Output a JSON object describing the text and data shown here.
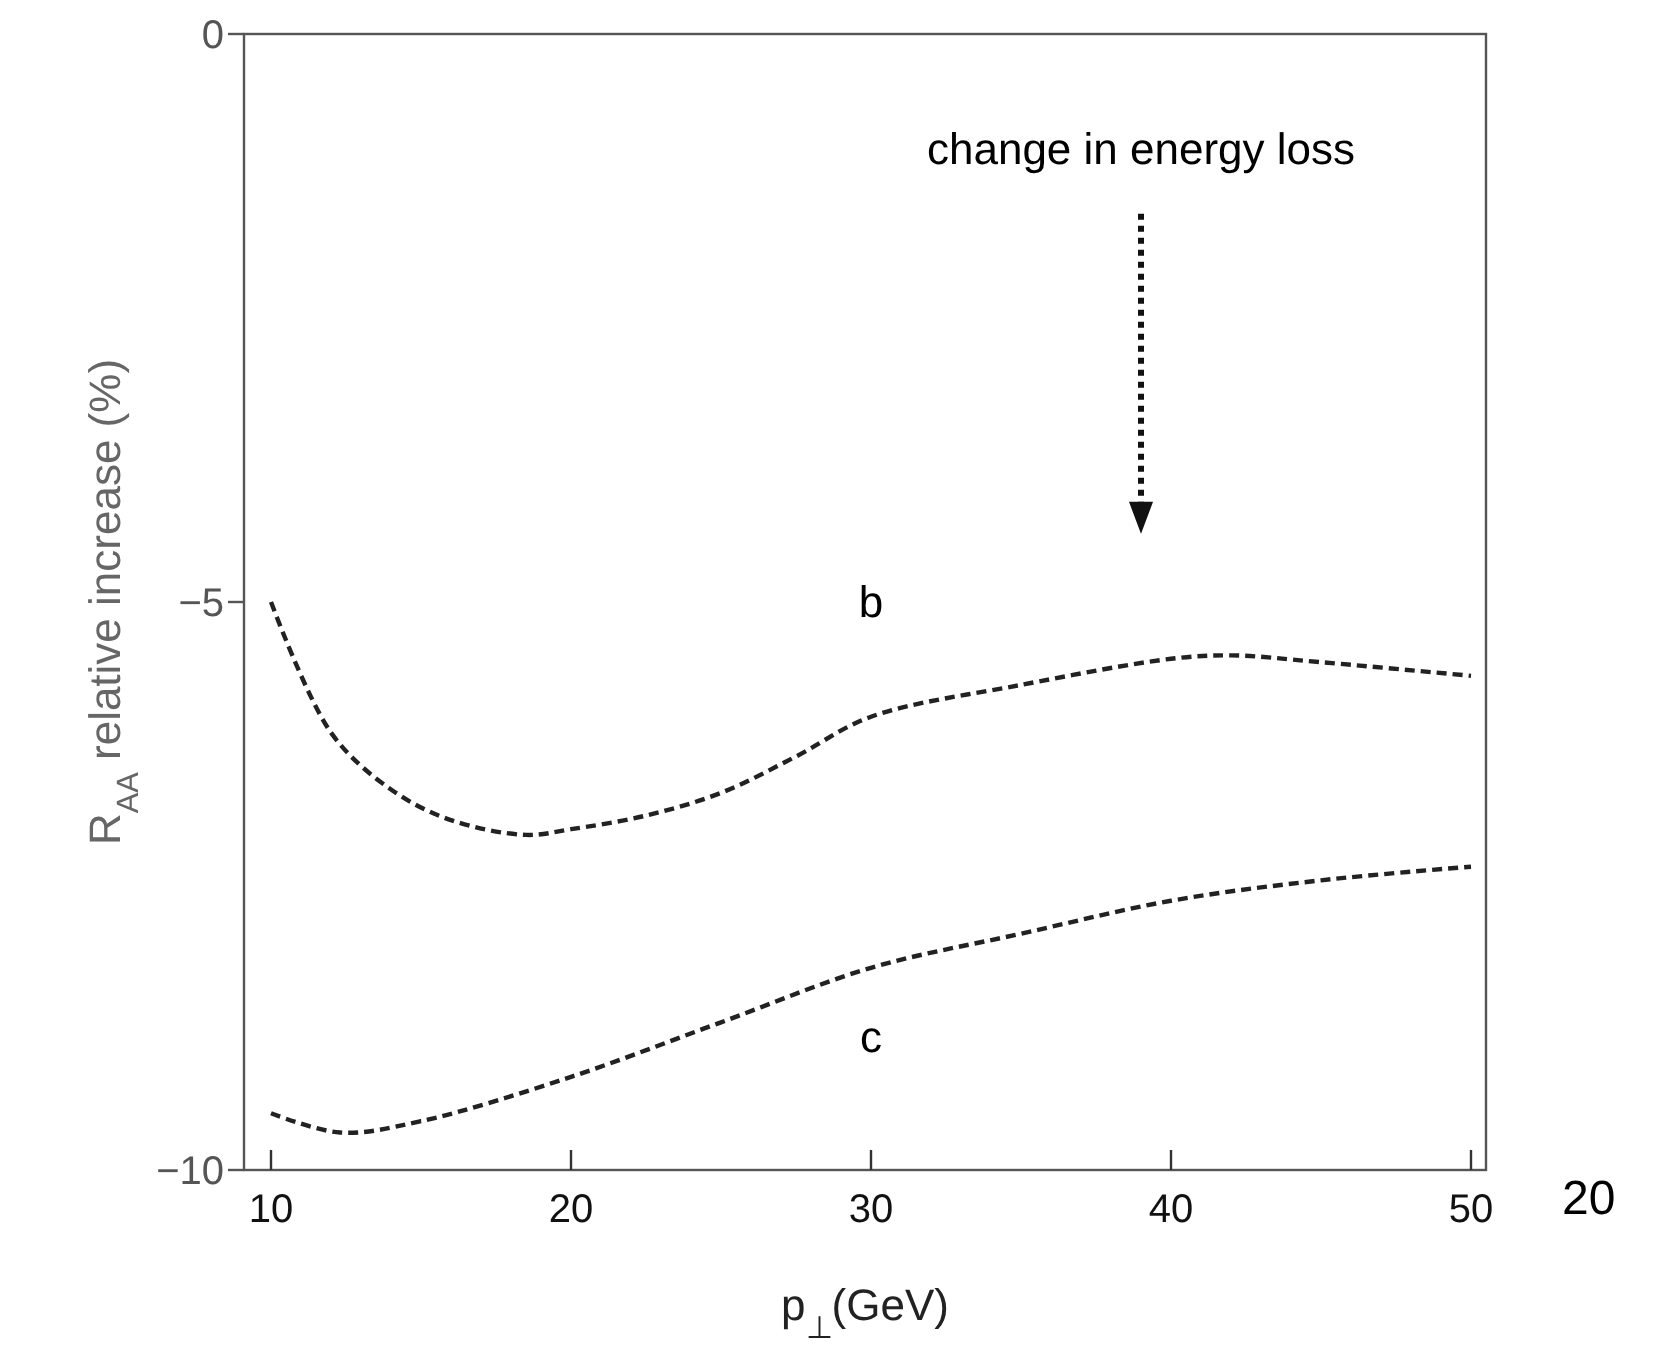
{
  "chart_data": {
    "type": "line",
    "xlabel": "p$_{⊥}$(GeV)",
    "ylabel": "R$_{AA}$ relative increase (%)",
    "xlim": [
      9.1,
      50.5
    ],
    "ylim": [
      -10,
      0
    ],
    "xticks": [
      10,
      20,
      30,
      40,
      50
    ],
    "yticks": [
      {
        "value": -10,
        "label": "−10"
      },
      {
        "value": -5,
        "label": "−5"
      },
      {
        "value": 0,
        "label": "0"
      }
    ],
    "grid": false,
    "marker": "none",
    "line_style": "dashed",
    "series": [
      {
        "name": "b",
        "color": "#222222",
        "x": [
          10,
          12,
          14,
          16,
          18.5,
          20,
          22.5,
          25,
          27.5,
          30,
          35,
          40,
          42,
          45,
          50
        ],
        "values": [
          -5.0,
          -6.15,
          -6.65,
          -6.92,
          -7.05,
          -7.0,
          -6.88,
          -6.68,
          -6.36,
          -6.01,
          -5.73,
          -5.5,
          -5.47,
          -5.53,
          -5.65
        ]
      },
      {
        "name": "c",
        "color": "#222222",
        "x": [
          10,
          12.3,
          15,
          20,
          25,
          30,
          35,
          40,
          45,
          50
        ],
        "values": [
          -9.5,
          -9.67,
          -9.57,
          -9.18,
          -8.7,
          -8.22,
          -7.92,
          -7.63,
          -7.45,
          -7.33
        ]
      }
    ],
    "annotations": [
      "change in energy loss",
      "20"
    ]
  }
}
